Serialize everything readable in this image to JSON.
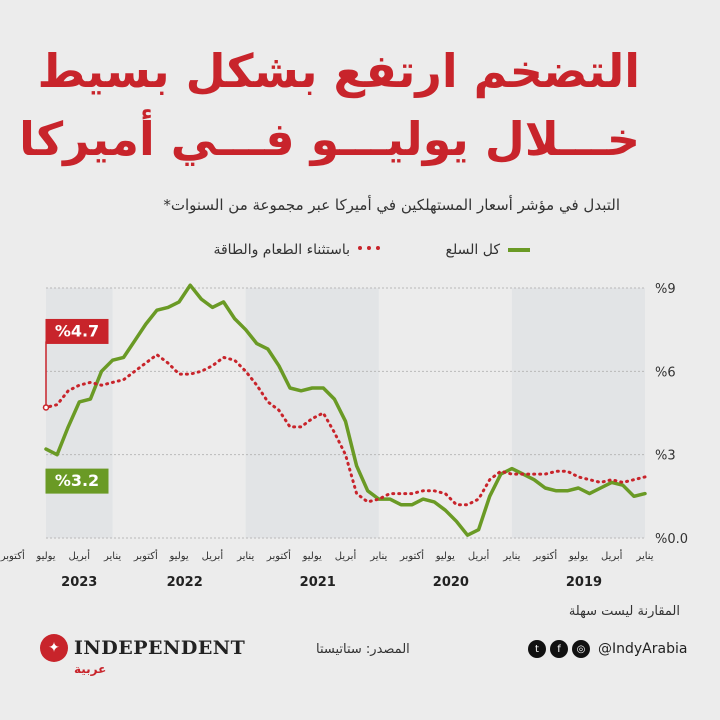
{
  "header": {
    "title_line1": "التضخم ارتفع بشكل بسيط",
    "title_line2": "خـــلال يوليـــو فـــي أميركا",
    "subtitle": "التبدل في مؤشر أسعار المستهلكين في أميركا عبر مجموعة من السنوات*"
  },
  "legend": {
    "all_items": "كل السلع",
    "core": "باستثناء الطعام والطاقة"
  },
  "colors": {
    "all_items": "#6a9a25",
    "core": "#c8242b",
    "title": "#c8242b"
  },
  "footer": {
    "note": "المقارنة ليست سهلة",
    "source": "المصدر: ستاتيستا",
    "brand": "INDEPENDENT",
    "brand_sub": "عربية",
    "handle": "@IndyArabia",
    "icons": [
      "twitter-icon",
      "facebook-icon",
      "instagram-icon"
    ]
  },
  "chart_data": {
    "type": "line",
    "y_ticks": [
      "%0.0",
      "%3",
      "%6",
      "%9"
    ],
    "ylim": [
      0,
      9
    ],
    "x_labels": [
      "يناير",
      "أبريل",
      "يوليو",
      "أكتوبر",
      "يناير",
      "أبريل",
      "يوليو",
      "أكتوبر",
      "يناير",
      "أبريل",
      "يوليو",
      "أكتوبر",
      "يناير",
      "أبريل",
      "يوليو",
      "أكتوبر",
      "يناير",
      "أبريل",
      "يوليو",
      "أكتوبر",
      "يناير",
      "أبريل",
      "يوليو"
    ],
    "years": [
      "2019",
      "2020",
      "2021",
      "2022",
      "2023"
    ],
    "x_order": "right-to-left, Jan 2019 (right) to Jul 2023 (left)",
    "annotations": [
      {
        "series": "core",
        "label": "%4.7",
        "value": 4.7,
        "month": "2023-07"
      },
      {
        "series": "all_items",
        "label": "%3.2",
        "value": 3.2,
        "month": "2023-07"
      }
    ],
    "series": [
      {
        "name": "كل السلع",
        "key": "all_items",
        "start": "2019-01",
        "values": [
          1.6,
          1.5,
          1.9,
          2.0,
          1.8,
          1.6,
          1.8,
          1.7,
          1.7,
          1.8,
          2.1,
          2.3,
          2.5,
          2.3,
          1.5,
          0.3,
          0.1,
          0.6,
          1.0,
          1.3,
          1.4,
          1.2,
          1.2,
          1.4,
          1.4,
          1.7,
          2.6,
          4.2,
          5.0,
          5.4,
          5.4,
          5.3,
          5.4,
          6.2,
          6.8,
          7.0,
          7.5,
          7.9,
          8.5,
          8.3,
          8.6,
          9.1,
          8.5,
          8.3,
          8.2,
          7.7,
          7.1,
          6.5,
          6.4,
          6.0,
          5.0,
          4.9,
          4.0,
          3.0,
          3.2
        ]
      },
      {
        "name": "باستثناء الطعام والطاقة",
        "key": "core",
        "start": "2019-01",
        "values": [
          2.2,
          2.1,
          2.0,
          2.1,
          2.0,
          2.1,
          2.2,
          2.4,
          2.4,
          2.3,
          2.3,
          2.3,
          2.3,
          2.4,
          2.1,
          1.4,
          1.2,
          1.2,
          1.6,
          1.7,
          1.7,
          1.6,
          1.6,
          1.6,
          1.4,
          1.3,
          1.6,
          3.0,
          3.8,
          4.5,
          4.3,
          4.0,
          4.0,
          4.6,
          4.9,
          5.5,
          6.0,
          6.4,
          6.5,
          6.2,
          6.0,
          5.9,
          5.9,
          6.3,
          6.6,
          6.3,
          6.0,
          5.7,
          5.6,
          5.5,
          5.6,
          5.5,
          5.3,
          4.8,
          4.7
        ]
      }
    ]
  }
}
